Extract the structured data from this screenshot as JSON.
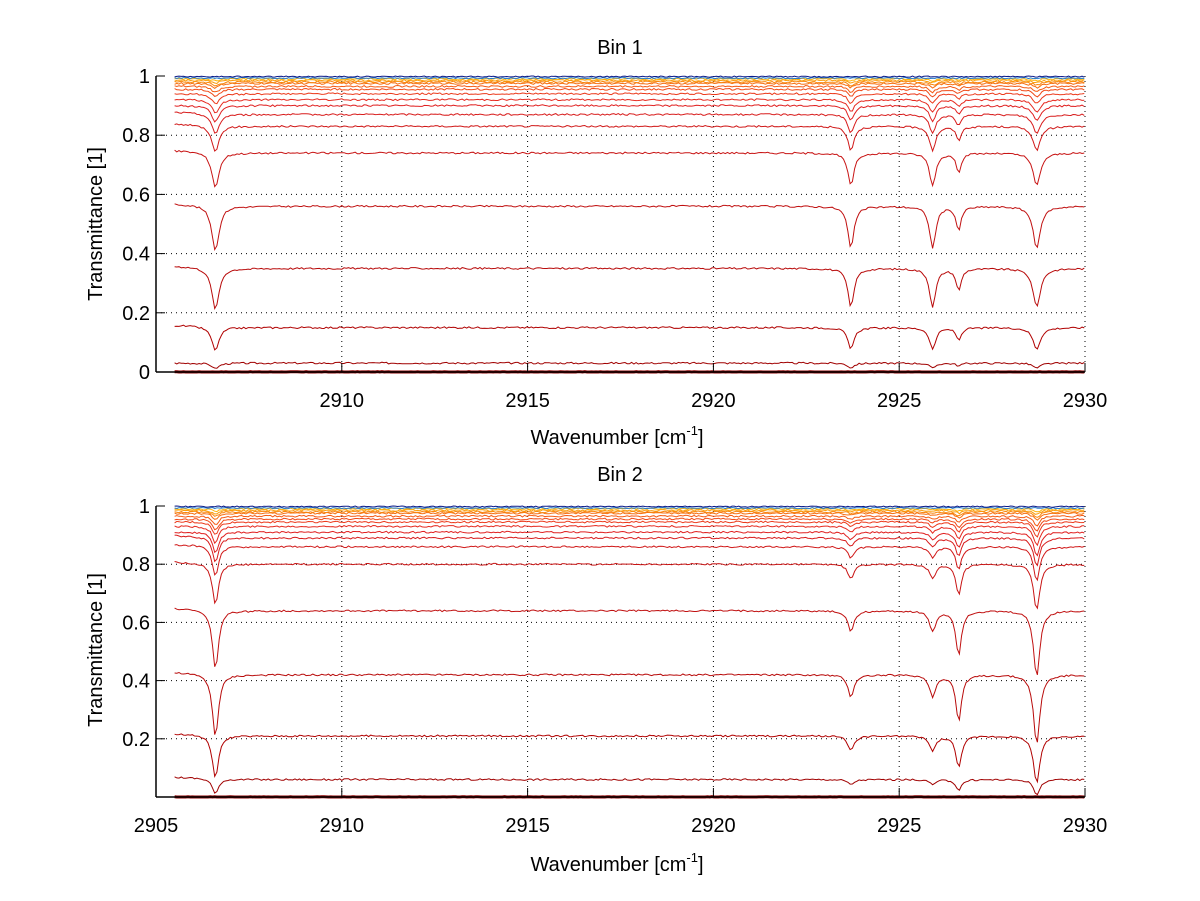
{
  "chart_data": [
    {
      "type": "line",
      "title": "Bin 1",
      "xlabel": "Wavenumber [cm",
      "xlabel_sup": "-1",
      "xlabel_end": "]",
      "ylabel": "Transmittance [1]",
      "xlim": [
        2905,
        2930
      ],
      "ylim": [
        0,
        1
      ],
      "grid": true,
      "xticks": [
        2910,
        2915,
        2920,
        2925,
        2930
      ],
      "xtick_labels": [
        "2910",
        "2915",
        "2920",
        "2925",
        "2930"
      ],
      "yticks": [
        0,
        0.2,
        0.4,
        0.6,
        0.8,
        1
      ],
      "ytick_labels": [
        "0",
        "0.2",
        "0.4",
        "0.6",
        "0.8",
        "1"
      ],
      "x_start": 2905.5,
      "x_end": 2930,
      "absorption_lines": [
        {
          "x": 2906.6,
          "relative_depth": 0.28,
          "width": 0.12
        },
        {
          "x": 2923.7,
          "relative_depth": 0.26,
          "width": 0.1
        },
        {
          "x": 2925.9,
          "relative_depth": 0.26,
          "width": 0.1
        },
        {
          "x": 2926.6,
          "relative_depth": 0.15,
          "width": 0.08
        },
        {
          "x": 2928.7,
          "relative_depth": 0.26,
          "width": 0.12
        }
      ],
      "series_baselines": [
        0.0,
        0.03,
        0.15,
        0.35,
        0.56,
        0.74,
        0.83,
        0.87,
        0.9,
        0.92,
        0.94,
        0.955,
        0.965,
        0.975,
        0.98,
        0.985,
        0.99,
        0.995,
        1.0
      ],
      "series_colors": [
        "#8b0000",
        "#a00000",
        "#b00000",
        "#b80a0a",
        "#c01010",
        "#c81414",
        "#d01818",
        "#d81c1c",
        "#e02020",
        "#e62a20",
        "#ec3a1c",
        "#f04a18",
        "#f45a14",
        "#f66e10",
        "#f8860c",
        "#fa9c0a",
        "#fcb40a",
        "#2a80c8",
        "#0a1a8a"
      ]
    },
    {
      "type": "line",
      "title": "Bin 2",
      "xlabel": "Wavenumber [cm",
      "xlabel_sup": "-1",
      "xlabel_end": "]",
      "ylabel": "Transmittance [1]",
      "xlim": [
        2905,
        2930
      ],
      "ylim": [
        0,
        1
      ],
      "grid": true,
      "xticks": [
        2905,
        2910,
        2915,
        2920,
        2925,
        2930
      ],
      "xtick_labels": [
        "2905",
        "2910",
        "2915",
        "2920",
        "2925",
        "2930"
      ],
      "yticks": [
        0.2,
        0.4,
        0.6,
        0.8,
        1
      ],
      "ytick_labels": [
        "0.2",
        "0.4",
        "0.6",
        "0.8",
        "1"
      ],
      "x_start": 2905.5,
      "x_end": 2930,
      "absorption_lines": [
        {
          "x": 2906.6,
          "relative_depth": 0.4,
          "width": 0.1
        },
        {
          "x": 2923.7,
          "relative_depth": 0.14,
          "width": 0.1
        },
        {
          "x": 2925.9,
          "relative_depth": 0.14,
          "width": 0.1
        },
        {
          "x": 2926.6,
          "relative_depth": 0.3,
          "width": 0.09
        },
        {
          "x": 2928.7,
          "relative_depth": 0.45,
          "width": 0.1
        }
      ],
      "series_baselines": [
        0.0,
        0.06,
        0.21,
        0.42,
        0.64,
        0.8,
        0.86,
        0.89,
        0.91,
        0.93,
        0.945,
        0.955,
        0.965,
        0.975,
        0.98,
        0.985,
        0.99,
        0.995,
        1.0
      ],
      "series_colors": [
        "#8b0000",
        "#a00000",
        "#b00000",
        "#b80a0a",
        "#c01010",
        "#c81414",
        "#d01818",
        "#d81c1c",
        "#e02020",
        "#e62a20",
        "#ec3a1c",
        "#f04a18",
        "#f45a14",
        "#f66e10",
        "#f8860c",
        "#fa9c0a",
        "#fcb40a",
        "#2a80c8",
        "#0a1a8a"
      ]
    }
  ]
}
